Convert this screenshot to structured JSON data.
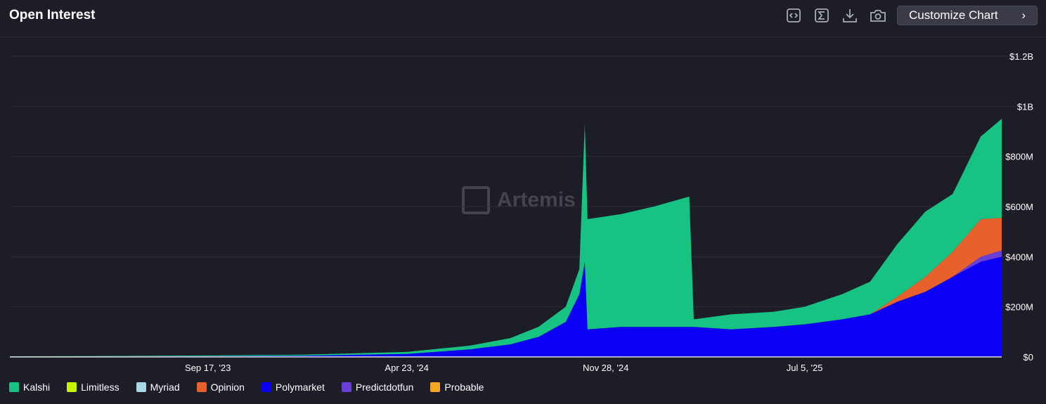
{
  "header": {
    "title": "Open Interest",
    "customize_label": "Customize Chart",
    "icons": [
      "embed-icon",
      "sigma-icon",
      "download-icon",
      "camera-icon"
    ]
  },
  "watermark": "Artemis",
  "chart_data": {
    "type": "area",
    "stacked": true,
    "title": "Open Interest",
    "ylim": [
      0,
      1200000000
    ],
    "y_ticks": [
      "$0",
      "$200M",
      "$400M",
      "$600M",
      "$800M",
      "$1B",
      "$1.2B"
    ],
    "x_ticks": [
      {
        "date": "2023-09-17",
        "label": "Sep 17, '23"
      },
      {
        "date": "2024-04-23",
        "label": "Apr 23, '24"
      },
      {
        "date": "2024-11-28",
        "label": "Nov 28, '24"
      },
      {
        "date": "2025-07-05",
        "label": "Jul 5, '25"
      }
    ],
    "x_range": [
      "2023-02-11",
      "2026-02-07"
    ],
    "grid": true,
    "legend_position": "bottom",
    "unit": "USD millions",
    "x": [
      "2023-02-11",
      "2023-06-01",
      "2023-09-17",
      "2024-01-01",
      "2024-04-23",
      "2024-07-01",
      "2024-08-15",
      "2024-09-15",
      "2024-10-15",
      "2024-10-30",
      "2024-11-05",
      "2024-11-08",
      "2024-12-15",
      "2025-01-20",
      "2025-02-28",
      "2025-03-05",
      "2025-04-15",
      "2025-06-01",
      "2025-07-05",
      "2025-08-15",
      "2025-09-15",
      "2025-10-15",
      "2025-11-15",
      "2025-12-15",
      "2026-01-15",
      "2026-02-07"
    ],
    "series": [
      {
        "name": "Polymarket",
        "color": "#0b00f5",
        "values": [
          1,
          2,
          3,
          5,
          12,
          30,
          50,
          80,
          140,
          250,
          380,
          110,
          120,
          120,
          120,
          120,
          110,
          120,
          130,
          150,
          170,
          220,
          260,
          320,
          380,
          400
        ]
      },
      {
        "name": "Predictdotfun",
        "color": "#6a3fd8",
        "values": [
          0,
          0,
          0,
          0,
          0,
          0,
          0,
          0,
          0,
          0,
          0,
          0,
          0,
          0,
          0,
          0,
          0,
          0,
          0,
          0,
          0,
          0,
          0,
          0,
          20,
          25
        ]
      },
      {
        "name": "Opinion",
        "color": "#e8602c",
        "values": [
          0,
          0,
          0,
          0,
          0,
          0,
          0,
          0,
          0,
          0,
          0,
          0,
          0,
          0,
          0,
          0,
          0,
          0,
          0,
          0,
          0,
          20,
          60,
          100,
          150,
          130
        ]
      },
      {
        "name": "Kalshi",
        "color": "#17c383",
        "values": [
          1,
          2,
          3,
          4,
          8,
          15,
          25,
          40,
          60,
          100,
          550,
          440,
          450,
          480,
          520,
          30,
          60,
          60,
          70,
          100,
          130,
          210,
          260,
          230,
          330,
          395
        ]
      },
      {
        "name": "Limitless",
        "color": "#c6f500",
        "values": [
          0,
          0,
          0,
          0,
          0,
          0,
          0,
          0,
          0,
          0,
          0,
          0,
          0,
          0,
          0,
          0,
          0,
          0,
          0,
          0,
          0,
          0,
          0,
          0,
          0,
          0
        ]
      },
      {
        "name": "Myriad",
        "color": "#a8d8e8",
        "values": [
          0,
          0,
          0,
          0,
          0,
          0,
          0,
          0,
          0,
          0,
          0,
          0,
          0,
          0,
          0,
          0,
          0,
          0,
          0,
          0,
          0,
          0,
          0,
          0,
          0,
          0
        ]
      },
      {
        "name": "Probable",
        "color": "#f5a623",
        "values": [
          0,
          0,
          0,
          0,
          0,
          0,
          0,
          0,
          0,
          0,
          0,
          0,
          0,
          0,
          0,
          0,
          0,
          0,
          0,
          0,
          0,
          0,
          0,
          0,
          0,
          0
        ]
      }
    ]
  },
  "legend": [
    {
      "label": "Kalshi",
      "color": "#17c383"
    },
    {
      "label": "Limitless",
      "color": "#c6f500"
    },
    {
      "label": "Myriad",
      "color": "#a8d8e8"
    },
    {
      "label": "Opinion",
      "color": "#e8602c"
    },
    {
      "label": "Polymarket",
      "color": "#0b00f5"
    },
    {
      "label": "Predictdotfun",
      "color": "#6a3fd8"
    },
    {
      "label": "Probable",
      "color": "#f5a623"
    }
  ]
}
